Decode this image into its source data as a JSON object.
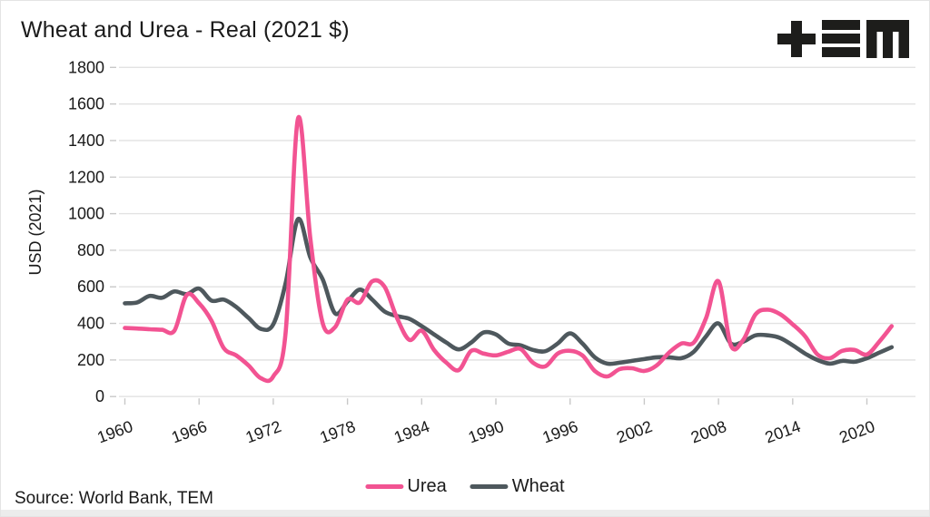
{
  "header": {
    "title": "Wheat and Urea - Real (2021 $)"
  },
  "logo": {
    "name": "TEM logo",
    "color": "#1d1d1b"
  },
  "footer": {
    "source": "Source: World Bank, TEM"
  },
  "legend": [
    {
      "label": "Urea",
      "color": "#f25392"
    },
    {
      "label": "Wheat",
      "color": "#4e585d"
    }
  ],
  "chart_data": {
    "type": "line",
    "title": "Wheat and Urea - Real (2021 $)",
    "xlabel": "",
    "ylabel": "USD (2021)",
    "ylim": [
      0,
      1800
    ],
    "yticks": [
      0,
      200,
      400,
      600,
      800,
      1000,
      1200,
      1400,
      1600,
      1800
    ],
    "xticks": [
      1960,
      1966,
      1972,
      1978,
      1984,
      1990,
      1996,
      2002,
      2008,
      2014,
      2020
    ],
    "grid": "horizontal",
    "legend_position": "bottom-center",
    "x": [
      1960,
      1961,
      1962,
      1963,
      1964,
      1965,
      1966,
      1967,
      1968,
      1969,
      1970,
      1971,
      1972,
      1973,
      1974,
      1975,
      1976,
      1977,
      1978,
      1979,
      1980,
      1981,
      1982,
      1983,
      1984,
      1985,
      1986,
      1987,
      1988,
      1989,
      1990,
      1991,
      1992,
      1993,
      1994,
      1995,
      1996,
      1997,
      1998,
      1999,
      2000,
      2001,
      2002,
      2003,
      2004,
      2005,
      2006,
      2007,
      2008,
      2009,
      2010,
      2011,
      2012,
      2013,
      2014,
      2015,
      2016,
      2017,
      2018,
      2019,
      2020,
      2021,
      2022
    ],
    "series": [
      {
        "name": "Urea",
        "color": "#f25392",
        "values": [
          375,
          372,
          368,
          365,
          360,
          555,
          510,
          415,
          265,
          225,
          170,
          100,
          110,
          350,
          1520,
          860,
          400,
          380,
          530,
          515,
          630,
          600,
          430,
          310,
          360,
          255,
          185,
          145,
          250,
          235,
          225,
          245,
          260,
          185,
          165,
          235,
          250,
          225,
          140,
          110,
          150,
          155,
          140,
          170,
          240,
          290,
          295,
          430,
          630,
          280,
          310,
          450,
          475,
          450,
          395,
          330,
          230,
          210,
          250,
          255,
          230,
          300,
          385
        ]
      },
      {
        "name": "Wheat",
        "color": "#4e585d",
        "values": [
          510,
          515,
          550,
          540,
          575,
          560,
          590,
          525,
          530,
          490,
          430,
          370,
          395,
          620,
          970,
          760,
          640,
          455,
          520,
          585,
          530,
          465,
          440,
          425,
          385,
          340,
          295,
          258,
          295,
          350,
          340,
          290,
          280,
          255,
          248,
          290,
          345,
          290,
          215,
          180,
          185,
          195,
          205,
          215,
          215,
          210,
          245,
          330,
          400,
          290,
          300,
          335,
          335,
          320,
          280,
          235,
          200,
          180,
          195,
          190,
          210,
          240,
          270
        ]
      }
    ]
  },
  "style": {
    "grid_color": "#e2e2e2",
    "tick_color": "#c8c8c8",
    "text_color": "#1a1a1a"
  }
}
